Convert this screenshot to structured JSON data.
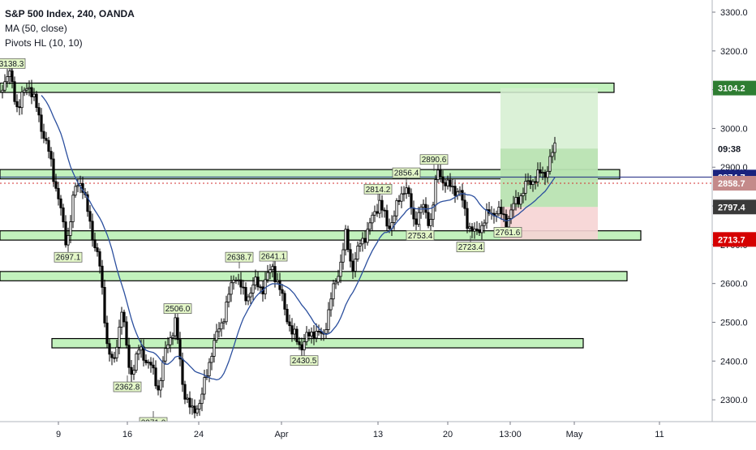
{
  "legend": {
    "title": "S&P 500 Index, 240, OANDA",
    "ma": "MA (50, close)",
    "pivots": "Pivots HL (10, 10)"
  },
  "chart_data": {
    "type": "candlestick",
    "y_axis": {
      "range": [
        2250,
        3330
      ],
      "ticks": [
        3300,
        3200,
        3100,
        3000,
        2900,
        2800,
        2700,
        2600,
        2500,
        2400,
        2300
      ],
      "tick_labels": [
        "3300.0",
        "3200.0",
        "3100.0",
        "3000.0",
        "2900.0",
        "2800.0",
        "2700.0",
        "2600.0",
        "2500.0",
        "2400.0",
        "2300.0"
      ]
    },
    "x_axis": {
      "tick_labels": [
        "9",
        "16",
        "24",
        "Apr",
        "13",
        "20",
        "13:00",
        "May",
        "11"
      ]
    },
    "price_labels": [
      {
        "label": "3104.2",
        "value": 3104.2,
        "color": "#2e7d32"
      },
      {
        "label": "09:38",
        "value": 2948,
        "color": "#ffffff"
      },
      {
        "label": "2874.7",
        "value": 2874.7,
        "color": "#1a237e"
      },
      {
        "label": "2858.7",
        "value": 2858.7,
        "color": "#c48a8a"
      },
      {
        "label": "2797.4",
        "value": 2797.4,
        "color": "#3a3a3a"
      },
      {
        "label": "2713.7",
        "value": 2713.7,
        "color": "#d50000"
      }
    ],
    "pivot_labels": [
      {
        "label": "3138.3",
        "value": 3138.3
      },
      {
        "label": "2697.1",
        "value": 2697.1
      },
      {
        "label": "2362.8",
        "value": 2362.8
      },
      {
        "label": "2506.0",
        "value": 2506.0
      },
      {
        "label": "2271.0",
        "value": 2271.0
      },
      {
        "label": "2638.7",
        "value": 2638.7
      },
      {
        "label": "2641.1",
        "value": 2641.1
      },
      {
        "label": "2430.5",
        "value": 2430.5
      },
      {
        "label": "2814.2",
        "value": 2814.2
      },
      {
        "label": "2856.4",
        "value": 2856.4
      },
      {
        "label": "2753.4",
        "value": 2753.4
      },
      {
        "label": "2890.6",
        "value": 2890.6
      },
      {
        "label": "2723.4",
        "value": 2723.4
      },
      {
        "label": "2761.6",
        "value": 2761.6
      }
    ],
    "zones": [
      {
        "low": 3093,
        "high": 3117
      },
      {
        "low": 2870,
        "high": 2894
      },
      {
        "low": 2712,
        "high": 2736
      },
      {
        "low": 2607,
        "high": 2631
      },
      {
        "low": 2434,
        "high": 2458
      }
    ],
    "position": {
      "entry": 2797.4,
      "target": 3104.2,
      "stop": 2713.7,
      "current": 2948
    },
    "reference_lines": {
      "blue": 2874.7,
      "dotted_red": 2858.7
    },
    "colors": {
      "up": "#ffffff",
      "down": "#000000",
      "wick": "#000000",
      "ma": "#2b4f9e",
      "zone_fill": "#b7f0b1",
      "zone_stroke": "#000000",
      "target_fill": "#d5efd0",
      "target_fill_dark": "#a9dca0",
      "stop_fill": "#f6d4d4",
      "blue_line": "#1a237e",
      "dotted_line": "#d32f2f"
    }
  }
}
